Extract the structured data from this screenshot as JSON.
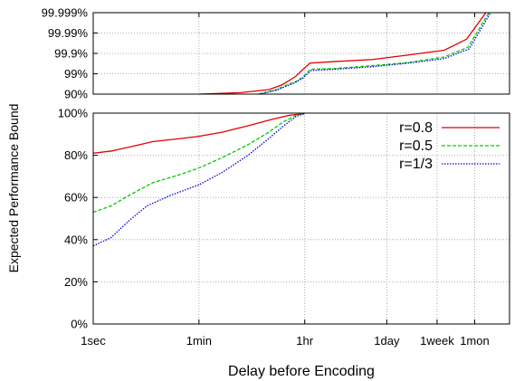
{
  "chart_data": [
    {
      "type": "line",
      "panel": "top",
      "scale": "log-unavailability",
      "ylim_percent": [
        90,
        99.999
      ],
      "y_ticks": [
        "99.999%",
        "99.99%",
        "99.9%",
        "99%",
        "90%"
      ],
      "grid": true,
      "series": [
        {
          "name": "r=0.8",
          "color": "#e00000",
          "dash": "solid",
          "x_seconds": [
            60,
            300,
            900,
            1500,
            2500,
            3200,
            4400,
            12000,
            50000,
            200000,
            800000,
            1900000,
            4000000
          ],
          "y_percent": [
            90,
            91.5,
            94,
            96.5,
            98.6,
            99.3,
            99.7,
            99.75,
            99.8,
            99.88,
            99.93,
            99.98,
            99.999
          ]
        },
        {
          "name": "r=0.5",
          "color": "#00cc00",
          "dash": "dashed",
          "x_seconds": [
            600,
            1200,
            1800,
            2500,
            3300,
            4500,
            12000,
            50000,
            200000,
            800000,
            2000000,
            4500000
          ],
          "y_percent": [
            90,
            94,
            96.5,
            97.5,
            98.5,
            99.4,
            99.45,
            99.6,
            99.72,
            99.85,
            99.95,
            99.999
          ]
        },
        {
          "name": "r=1/3",
          "color": "#0000dd",
          "dash": "dotted",
          "x_seconds": [
            620,
            1200,
            1800,
            2500,
            3300,
            4600,
            12000,
            50000,
            200000,
            800000,
            2100000,
            4800000
          ],
          "y_percent": [
            90,
            93.5,
            96,
            97.3,
            98.3,
            99.3,
            99.4,
            99.55,
            99.7,
            99.82,
            99.94,
            99.999
          ]
        }
      ]
    },
    {
      "type": "line",
      "panel": "bottom",
      "xlabel": "Delay before Encoding",
      "ylabel": "Expected Performance Bound",
      "ylim_percent": [
        0,
        100
      ],
      "y_ticks": [
        "100%",
        "80%",
        "60%",
        "40%",
        "20%",
        "0%"
      ],
      "x_ticks": [
        "1sec",
        "1min",
        "1hr",
        "1day",
        "1week",
        "1mon"
      ],
      "x_tick_seconds": [
        1,
        60,
        3600,
        86400,
        604800,
        2592000
      ],
      "xlim_seconds": [
        1,
        10000000
      ],
      "grid": true,
      "legend_position": "top-right",
      "series": [
        {
          "name": "r=0.8",
          "color": "#e00000",
          "dash": "solid",
          "x_seconds": [
            1,
            2,
            5,
            10,
            30,
            60,
            150,
            400,
            1000,
            2000,
            3600
          ],
          "y_percent": [
            81,
            82,
            84.5,
            86.5,
            88,
            89,
            91,
            94,
            97,
            99,
            99.8
          ]
        },
        {
          "name": "r=0.5",
          "color": "#00cc00",
          "dash": "dashed",
          "x_seconds": [
            1,
            2,
            4,
            10,
            30,
            60,
            150,
            400,
            900,
            1600,
            2600,
            3600
          ],
          "y_percent": [
            53,
            56,
            61,
            67,
            71,
            74,
            79,
            85,
            91,
            96,
            99,
            99.8
          ]
        },
        {
          "name": "r=1/3",
          "color": "#0000dd",
          "dash": "dotted",
          "x_seconds": [
            1,
            2,
            4,
            8,
            20,
            60,
            150,
            400,
            900,
            1600,
            2600,
            3600
          ],
          "y_percent": [
            37,
            41,
            49,
            56,
            61,
            66,
            72,
            80,
            88,
            94,
            98.5,
            99.8
          ]
        }
      ]
    }
  ]
}
